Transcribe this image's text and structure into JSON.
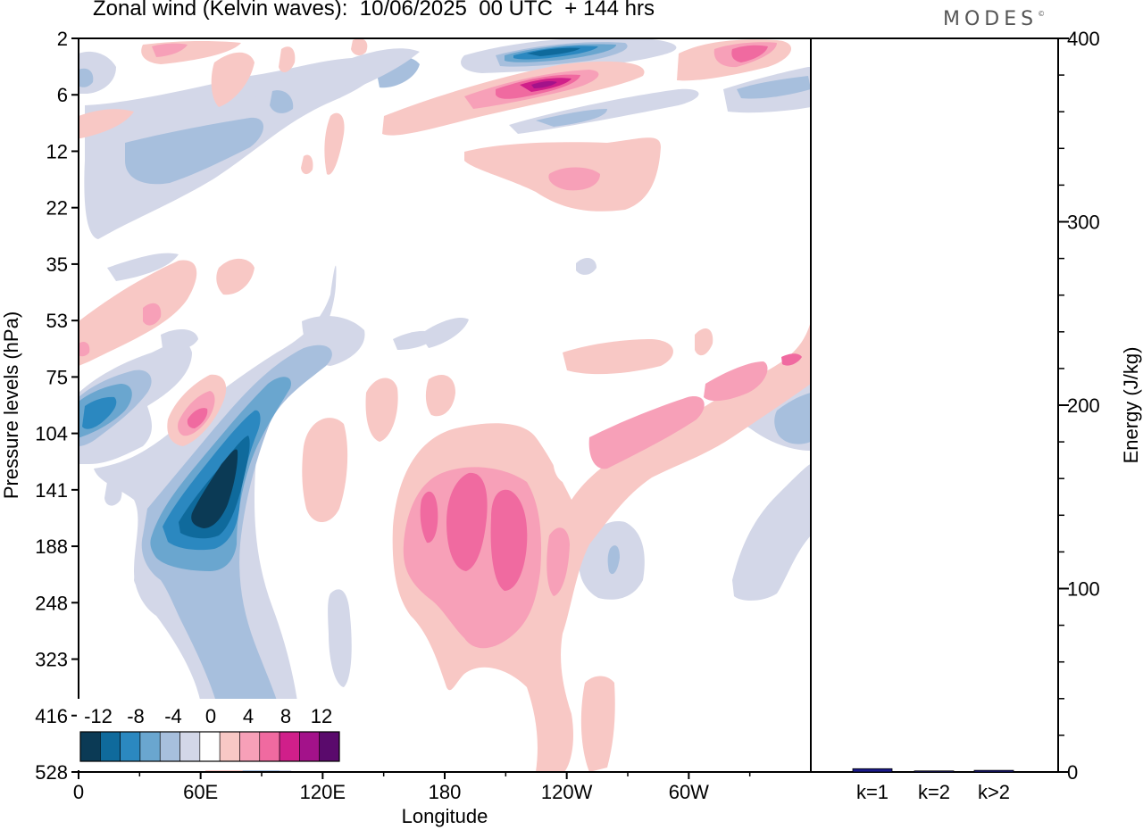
{
  "header": {
    "title": "Zonal wind (Kelvin waves):  10/06/2025  00 UTC  + 144 hrs",
    "brand": "MODES",
    "brand_mark": "©"
  },
  "chart_data": [
    {
      "type": "heatmap",
      "title": "Zonal wind (Kelvin waves):  10/06/2025  00 UTC  + 144 hrs",
      "xlabel": "Longitude",
      "ylabel": "Pressure levels (hPa)",
      "x_ticks": [
        "0",
        "60E",
        "120E",
        "180",
        "120W",
        "60W"
      ],
      "x_tick_degrees": [
        0,
        60,
        120,
        180,
        240,
        300
      ],
      "xlim": [
        0,
        360
      ],
      "y_ticks": [
        "2",
        "6",
        "12",
        "22",
        "35",
        "53",
        "75",
        "104",
        "141",
        "188",
        "248",
        "323",
        "416",
        "528"
      ],
      "y_scale": "pressure levels, top to bottom",
      "colorbar": {
        "labels": [
          "-12",
          "-8",
          "-4",
          "0",
          "4",
          "8",
          "12"
        ],
        "levels": [
          -14,
          -12,
          -10,
          -8,
          -6,
          -4,
          -2,
          2,
          4,
          6,
          8,
          10,
          12,
          14
        ],
        "colors": [
          "#0b3a55",
          "#0f6a9c",
          "#2b88c0",
          "#6aa6cf",
          "#a7bfdd",
          "#d3d7e8",
          "#ffffff",
          "#f8c8c5",
          "#f7a0b8",
          "#f06aa0",
          "#d01f8a",
          "#a3128a",
          "#5a0a6c"
        ],
        "placement": "bottom-left"
      },
      "features": [
        {
          "sign": "negative",
          "lon": [
            60,
            80
          ],
          "pressure_hPa": [
            104,
            188
          ],
          "peak": -14
        },
        {
          "sign": "negative",
          "lon": [
            0,
            15
          ],
          "pressure_hPa": [
            75,
            104
          ],
          "peak": -10
        },
        {
          "sign": "negative",
          "lon": [
            215,
            255
          ],
          "pressure_hPa": [
            2,
            4
          ],
          "peak": -12
        },
        {
          "sign": "positive",
          "lon": [
            165,
            225
          ],
          "pressure_hPa": [
            141,
            248
          ],
          "peak": 8
        },
        {
          "sign": "positive",
          "lon": [
            50,
            70
          ],
          "pressure_hPa": [
            75,
            104
          ],
          "peak": 8
        },
        {
          "sign": "positive",
          "lon": [
            215,
            240
          ],
          "pressure_hPa": [
            4,
            6
          ],
          "peak": 10
        }
      ]
    },
    {
      "type": "bar",
      "ylabel": "Energy (J/kg)",
      "ylim": [
        0,
        400
      ],
      "y_ticks": [
        "0",
        "100",
        "200",
        "300",
        "400"
      ],
      "categories": [
        "k=1",
        "k=2",
        "k>2"
      ],
      "values": [
        1.8,
        0.6,
        0.9
      ],
      "color": "#1a1a8c"
    }
  ]
}
